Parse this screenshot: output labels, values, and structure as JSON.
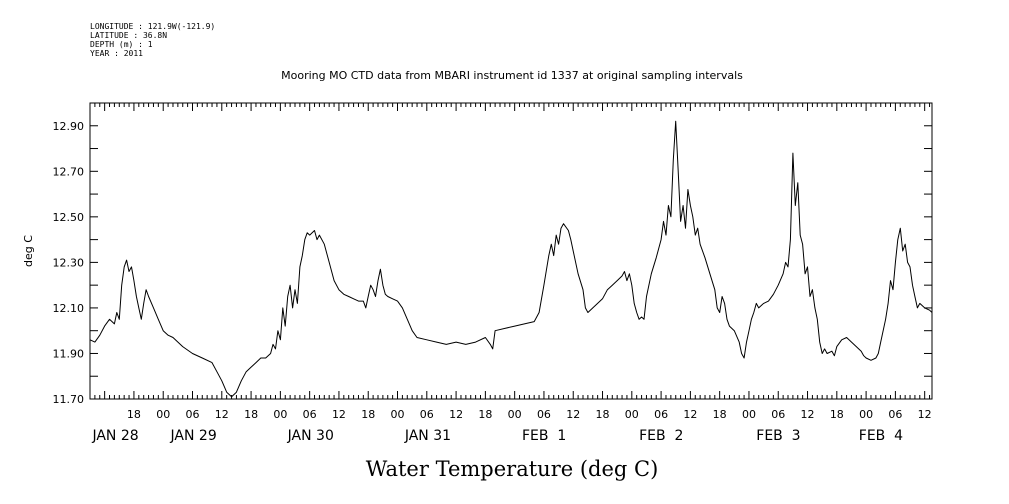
{
  "header": {
    "lines": [
      "LONGITUDE : 121.9W(-121.9)",
      "LATITUDE : 36.8N",
      "DEPTH (m) : 1",
      "YEAR : 2011"
    ]
  },
  "chart_data": {
    "type": "line",
    "title": "Mooring MO CTD data from MBARI instrument id 1337 at original sampling intervals",
    "xlabel": "Water Temperature (deg C)",
    "ylabel": "deg C",
    "ylim": [
      11.7,
      13.0
    ],
    "y_ticks": [
      "11.70",
      "11.90",
      "12.10",
      "12.30",
      "12.50",
      "12.70",
      "12.90"
    ],
    "x_units": "hours since JAN 28 00:00",
    "xlim": [
      9,
      181.5
    ],
    "hour_ticks": [
      {
        "h": 18,
        "label": "18"
      },
      {
        "h": 24,
        "label": "00"
      },
      {
        "h": 30,
        "label": "06"
      },
      {
        "h": 36,
        "label": "12"
      },
      {
        "h": 42,
        "label": "18"
      },
      {
        "h": 48,
        "label": "00"
      },
      {
        "h": 54,
        "label": "06"
      },
      {
        "h": 60,
        "label": "12"
      },
      {
        "h": 66,
        "label": "18"
      },
      {
        "h": 72,
        "label": "00"
      },
      {
        "h": 78,
        "label": "06"
      },
      {
        "h": 84,
        "label": "12"
      },
      {
        "h": 90,
        "label": "18"
      },
      {
        "h": 96,
        "label": "00"
      },
      {
        "h": 102,
        "label": "06"
      },
      {
        "h": 108,
        "label": "12"
      },
      {
        "h": 114,
        "label": "18"
      },
      {
        "h": 120,
        "label": "00"
      },
      {
        "h": 126,
        "label": "06"
      },
      {
        "h": 132,
        "label": "12"
      },
      {
        "h": 138,
        "label": "18"
      },
      {
        "h": 144,
        "label": "00"
      },
      {
        "h": 150,
        "label": "06"
      },
      {
        "h": 156,
        "label": "12"
      },
      {
        "h": 162,
        "label": "18"
      },
      {
        "h": 168,
        "label": "00"
      },
      {
        "h": 174,
        "label": "06"
      },
      {
        "h": 180,
        "label": "12"
      }
    ],
    "date_labels": [
      {
        "h": 9.5,
        "label": "JAN 28"
      },
      {
        "h": 25.5,
        "label": "JAN 29"
      },
      {
        "h": 49.5,
        "label": "JAN 30"
      },
      {
        "h": 73.5,
        "label": "JAN 31"
      },
      {
        "h": 97.5,
        "label": "FEB  1"
      },
      {
        "h": 121.5,
        "label": "FEB  2"
      },
      {
        "h": 145.5,
        "label": "FEB  3"
      },
      {
        "h": 166.5,
        "label": "FEB  4"
      }
    ],
    "series": [
      {
        "values": [
          [
            9.0,
            11.96
          ],
          [
            10.0,
            11.95
          ],
          [
            11.0,
            11.98
          ],
          [
            12.0,
            12.02
          ],
          [
            13.0,
            12.05
          ],
          [
            14.0,
            12.03
          ],
          [
            14.5,
            12.08
          ],
          [
            15.0,
            12.05
          ],
          [
            15.5,
            12.2
          ],
          [
            16.0,
            12.28
          ],
          [
            16.5,
            12.31
          ],
          [
            17.0,
            12.26
          ],
          [
            17.5,
            12.28
          ],
          [
            18.0,
            12.22
          ],
          [
            18.5,
            12.15
          ],
          [
            19.0,
            12.1
          ],
          [
            19.5,
            12.05
          ],
          [
            20.0,
            12.12
          ],
          [
            20.5,
            12.18
          ],
          [
            21.0,
            12.15
          ],
          [
            22.0,
            12.1
          ],
          [
            23.0,
            12.05
          ],
          [
            24.0,
            12.0
          ],
          [
            25.0,
            11.98
          ],
          [
            26.0,
            11.97
          ],
          [
            28.0,
            11.93
          ],
          [
            30.0,
            11.9
          ],
          [
            32.0,
            11.88
          ],
          [
            34.0,
            11.86
          ],
          [
            35.0,
            11.82
          ],
          [
            36.0,
            11.78
          ],
          [
            37.0,
            11.73
          ],
          [
            38.0,
            11.71
          ],
          [
            39.0,
            11.73
          ],
          [
            40.0,
            11.78
          ],
          [
            41.0,
            11.82
          ],
          [
            42.0,
            11.84
          ],
          [
            43.0,
            11.86
          ],
          [
            44.0,
            11.88
          ],
          [
            45.0,
            11.88
          ],
          [
            46.0,
            11.9
          ],
          [
            46.5,
            11.94
          ],
          [
            47.0,
            11.92
          ],
          [
            47.5,
            12.0
          ],
          [
            48.0,
            11.96
          ],
          [
            48.5,
            12.1
          ],
          [
            49.0,
            12.02
          ],
          [
            49.5,
            12.15
          ],
          [
            50.0,
            12.2
          ],
          [
            50.5,
            12.1
          ],
          [
            51.0,
            12.18
          ],
          [
            51.5,
            12.12
          ],
          [
            52.0,
            12.28
          ],
          [
            52.5,
            12.33
          ],
          [
            53.0,
            12.4
          ],
          [
            53.5,
            12.43
          ],
          [
            54.0,
            12.42
          ],
          [
            55.0,
            12.44
          ],
          [
            55.5,
            12.4
          ],
          [
            56.0,
            12.42
          ],
          [
            57.0,
            12.38
          ],
          [
            58.0,
            12.3
          ],
          [
            59.0,
            12.22
          ],
          [
            60.0,
            12.18
          ],
          [
            61.0,
            12.16
          ],
          [
            62.0,
            12.15
          ],
          [
            63.0,
            12.14
          ],
          [
            64.0,
            12.13
          ],
          [
            65.0,
            12.13
          ],
          [
            65.5,
            12.1
          ],
          [
            66.0,
            12.15
          ],
          [
            66.5,
            12.2
          ],
          [
            67.0,
            12.18
          ],
          [
            67.5,
            12.15
          ],
          [
            68.0,
            12.22
          ],
          [
            68.5,
            12.27
          ],
          [
            69.0,
            12.2
          ],
          [
            69.5,
            12.16
          ],
          [
            70.0,
            12.15
          ],
          [
            71.0,
            12.14
          ],
          [
            72.0,
            12.13
          ],
          [
            73.0,
            12.1
          ],
          [
            74.0,
            12.05
          ],
          [
            75.0,
            12.0
          ],
          [
            76.0,
            11.97
          ],
          [
            78.0,
            11.96
          ],
          [
            80.0,
            11.95
          ],
          [
            82.0,
            11.94
          ],
          [
            84.0,
            11.95
          ],
          [
            86.0,
            11.94
          ],
          [
            88.0,
            11.95
          ],
          [
            90.0,
            11.97
          ],
          [
            91.0,
            11.94
          ],
          [
            91.5,
            11.92
          ],
          [
            92.0,
            12.0
          ],
          [
            94.0,
            12.01
          ],
          [
            96.0,
            12.02
          ],
          [
            98.0,
            12.03
          ],
          [
            100.0,
            12.04
          ],
          [
            101.0,
            12.08
          ],
          [
            102.0,
            12.2
          ],
          [
            103.0,
            12.33
          ],
          [
            103.5,
            12.38
          ],
          [
            104.0,
            12.33
          ],
          [
            104.5,
            12.42
          ],
          [
            105.0,
            12.38
          ],
          [
            105.5,
            12.45
          ],
          [
            106.0,
            12.47
          ],
          [
            107.0,
            12.44
          ],
          [
            107.5,
            12.4
          ],
          [
            108.0,
            12.35
          ],
          [
            109.0,
            12.25
          ],
          [
            110.0,
            12.18
          ],
          [
            110.5,
            12.1
          ],
          [
            111.0,
            12.08
          ],
          [
            112.0,
            12.1
          ],
          [
            113.0,
            12.12
          ],
          [
            114.0,
            12.14
          ],
          [
            115.0,
            12.18
          ],
          [
            116.0,
            12.2
          ],
          [
            117.0,
            12.22
          ],
          [
            118.0,
            12.24
          ],
          [
            118.5,
            12.26
          ],
          [
            119.0,
            12.22
          ],
          [
            119.5,
            12.25
          ],
          [
            120.0,
            12.2
          ],
          [
            120.5,
            12.12
          ],
          [
            121.0,
            12.08
          ],
          [
            121.5,
            12.05
          ],
          [
            122.0,
            12.06
          ],
          [
            122.5,
            12.05
          ],
          [
            123.0,
            12.15
          ],
          [
            124.0,
            12.25
          ],
          [
            125.0,
            12.32
          ],
          [
            126.0,
            12.4
          ],
          [
            126.5,
            12.48
          ],
          [
            127.0,
            12.42
          ],
          [
            127.5,
            12.55
          ],
          [
            128.0,
            12.5
          ],
          [
            128.5,
            12.75
          ],
          [
            129.0,
            12.92
          ],
          [
            129.5,
            12.7
          ],
          [
            130.0,
            12.48
          ],
          [
            130.5,
            12.55
          ],
          [
            131.0,
            12.45
          ],
          [
            131.5,
            12.62
          ],
          [
            132.0,
            12.55
          ],
          [
            132.5,
            12.5
          ],
          [
            133.0,
            12.42
          ],
          [
            133.5,
            12.45
          ],
          [
            134.0,
            12.38
          ],
          [
            135.0,
            12.32
          ],
          [
            136.0,
            12.25
          ],
          [
            137.0,
            12.18
          ],
          [
            137.5,
            12.1
          ],
          [
            138.0,
            12.08
          ],
          [
            138.5,
            12.15
          ],
          [
            139.0,
            12.12
          ],
          [
            139.5,
            12.05
          ],
          [
            140.0,
            12.02
          ],
          [
            141.0,
            12.0
          ],
          [
            142.0,
            11.95
          ],
          [
            142.5,
            11.9
          ],
          [
            143.0,
            11.88
          ],
          [
            143.5,
            11.95
          ],
          [
            144.0,
            12.0
          ],
          [
            144.5,
            12.05
          ],
          [
            145.0,
            12.08
          ],
          [
            145.5,
            12.12
          ],
          [
            146.0,
            12.1
          ],
          [
            147.0,
            12.12
          ],
          [
            148.0,
            12.13
          ],
          [
            149.0,
            12.16
          ],
          [
            150.0,
            12.2
          ],
          [
            151.0,
            12.25
          ],
          [
            151.5,
            12.3
          ],
          [
            152.0,
            12.28
          ],
          [
            152.5,
            12.4
          ],
          [
            153.0,
            12.78
          ],
          [
            153.5,
            12.55
          ],
          [
            154.0,
            12.65
          ],
          [
            154.5,
            12.42
          ],
          [
            155.0,
            12.38
          ],
          [
            155.5,
            12.25
          ],
          [
            156.0,
            12.28
          ],
          [
            156.5,
            12.15
          ],
          [
            157.0,
            12.18
          ],
          [
            157.5,
            12.1
          ],
          [
            158.0,
            12.05
          ],
          [
            158.5,
            11.95
          ],
          [
            159.0,
            11.9
          ],
          [
            159.5,
            11.92
          ],
          [
            160.0,
            11.9
          ],
          [
            161.0,
            11.91
          ],
          [
            161.5,
            11.89
          ],
          [
            162.0,
            11.93
          ],
          [
            163.0,
            11.96
          ],
          [
            164.0,
            11.97
          ],
          [
            165.0,
            11.95
          ],
          [
            166.0,
            11.93
          ],
          [
            167.0,
            11.91
          ],
          [
            167.5,
            11.89
          ],
          [
            168.0,
            11.88
          ],
          [
            169.0,
            11.87
          ],
          [
            170.0,
            11.88
          ],
          [
            170.5,
            11.9
          ],
          [
            171.0,
            11.95
          ],
          [
            172.0,
            12.05
          ],
          [
            172.5,
            12.12
          ],
          [
            173.0,
            12.22
          ],
          [
            173.5,
            12.18
          ],
          [
            174.0,
            12.3
          ],
          [
            174.5,
            12.4
          ],
          [
            175.0,
            12.45
          ],
          [
            175.5,
            12.35
          ],
          [
            176.0,
            12.38
          ],
          [
            176.5,
            12.3
          ],
          [
            177.0,
            12.28
          ],
          [
            177.5,
            12.2
          ],
          [
            178.0,
            12.15
          ],
          [
            178.5,
            12.1
          ],
          [
            179.0,
            12.12
          ],
          [
            180.0,
            12.1
          ],
          [
            181.0,
            12.09
          ],
          [
            181.5,
            12.08
          ]
        ]
      }
    ]
  }
}
